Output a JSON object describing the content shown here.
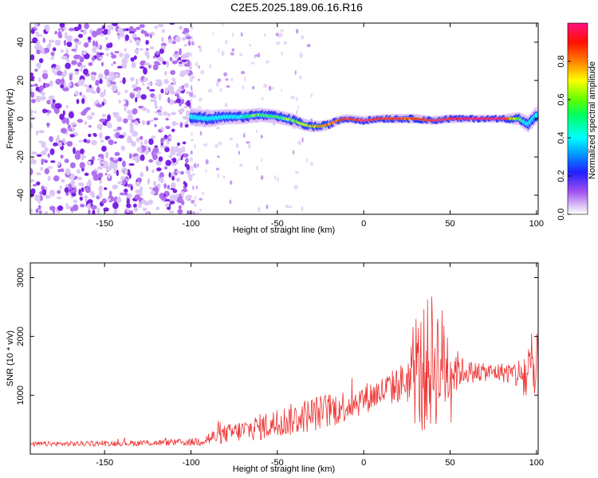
{
  "title": "C2E5.2025.189.06.16.R16",
  "chart_data": [
    {
      "type": "heatmap",
      "xlabel": "Height of straight line (km)",
      "ylabel": "Frequency (Hz)",
      "xlim": [
        -193,
        101
      ],
      "ylim": [
        -50,
        50
      ],
      "xticks": [
        -150,
        -100,
        -50,
        0,
        50,
        100
      ],
      "yticks": [
        -40,
        -20,
        0,
        20,
        40
      ],
      "colorbar": {
        "label": "Normalized spectral amplitude",
        "range": [
          0,
          1
        ],
        "ticks": [
          "0.0",
          "0.2",
          "0.4",
          "0.6",
          "0.8"
        ],
        "colormap": "rainbow (magenta-blue-cyan-green-yellow-orange-red-pink)"
      },
      "noise_region_x": [
        -193,
        -100
      ],
      "signal_trace": {
        "x": [
          -100,
          -90,
          -80,
          -70,
          -60,
          -50,
          -40,
          -35,
          -30,
          -25,
          -20,
          -15,
          -10,
          0,
          10,
          20,
          30,
          40,
          50,
          60,
          70,
          80,
          90,
          95,
          100
        ],
        "freq": [
          1,
          0,
          1,
          1,
          2,
          1,
          -1,
          -3,
          -4,
          -4,
          -3,
          -1,
          0,
          -1,
          0,
          0,
          0,
          -1,
          0,
          0,
          0,
          0,
          0,
          -3,
          2
        ],
        "amplitude": [
          0.3,
          0.35,
          0.45,
          0.5,
          0.55,
          0.55,
          0.6,
          0.65,
          0.7,
          0.75,
          0.8,
          0.85,
          0.9,
          0.9,
          0.9,
          0.85,
          0.85,
          0.9,
          0.9,
          0.95,
          0.95,
          0.95,
          0.6,
          0.4,
          0.35
        ]
      }
    },
    {
      "type": "line",
      "xlabel": "Height of straight line (km)",
      "ylabel": "SNR (10 * v/v)",
      "xlim": [
        -193,
        101
      ],
      "ylim": [
        0,
        3250
      ],
      "xticks": [
        -150,
        -100,
        -50,
        0,
        50,
        100
      ],
      "yticks": [
        1000,
        2000,
        3000
      ],
      "series": [
        {
          "color": "#ee3333",
          "x": [
            -193,
            -150,
            -100,
            -90,
            -80,
            -70,
            -60,
            -50,
            -40,
            -30,
            -20,
            -10,
            0,
            10,
            20,
            25,
            30,
            35,
            40,
            45,
            50,
            55,
            60,
            70,
            80,
            85,
            90,
            95,
            98,
            100
          ],
          "y": [
            170,
            180,
            200,
            260,
            340,
            400,
            460,
            520,
            600,
            680,
            740,
            830,
            940,
            1050,
            1180,
            1260,
            1330,
            1450,
            1600,
            1550,
            1500,
            1420,
            1400,
            1390,
            1390,
            1380,
            1350,
            1320,
            1260,
            1250
          ],
          "noise_amplitude": [
            40,
            45,
            60,
            130,
            160,
            190,
            230,
            260,
            280,
            300,
            310,
            280,
            260,
            270,
            320,
            380,
            900,
            1100,
            1200,
            1000,
            800,
            280,
            200,
            150,
            170,
            200,
            300,
            700,
            900,
            800
          ]
        }
      ]
    }
  ]
}
